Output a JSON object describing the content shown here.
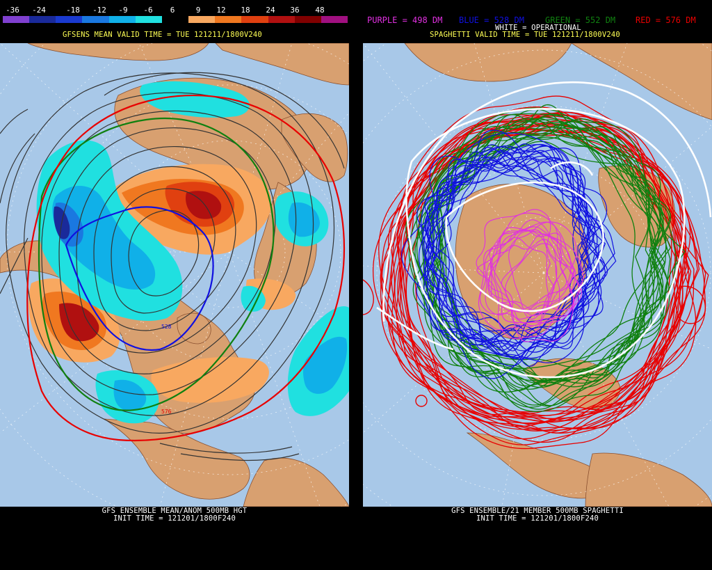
{
  "left": {
    "legend_labels": [
      "-36",
      "-24",
      "-18",
      "-12",
      "-9",
      "-6",
      "6",
      "9",
      "12",
      "18",
      "24",
      "36",
      "48"
    ],
    "legend_colors": [
      "#8040d0",
      "#1a2a9a",
      "#1a3ad0",
      "#1a78e0",
      "#10b0e8",
      "#20e0e0",
      "#000000",
      "#f8a860",
      "#f07820",
      "#e04010",
      "#b01010",
      "#800000",
      "#a01080"
    ],
    "valid_time": "GFSENS MEAN VALID TIME = TUE 121211/1800V240",
    "footer_line1": "GFS ENSEMBLE MEAN/ANOM 500MB HGT",
    "footer_line2": "INIT TIME = 121201/1800F240",
    "contour_labels": [
      "528",
      "576"
    ]
  },
  "right": {
    "header_purple": "PURPLE = 498 DM",
    "header_blue": "BLUE = 528 DM",
    "header_green": "GREEN = 552 DM",
    "header_red": "RED = 576 DM",
    "header_white": "WHITE = OPERATIONAL",
    "valid_time": "SPAGHETTI VALID TIME = TUE 121211/1800V240",
    "footer_line1": "GFS ENSEMBLE/21 MEMBER 500MB SPAGHETTI",
    "footer_line2": "INIT TIME = 121201/1800F240"
  },
  "colors": {
    "ocean": "#a8c8e8",
    "land": "#d8a070",
    "purple": "#e030e0",
    "blue": "#1010e0",
    "green": "#108010",
    "red": "#e80000",
    "white": "#ffffff"
  }
}
